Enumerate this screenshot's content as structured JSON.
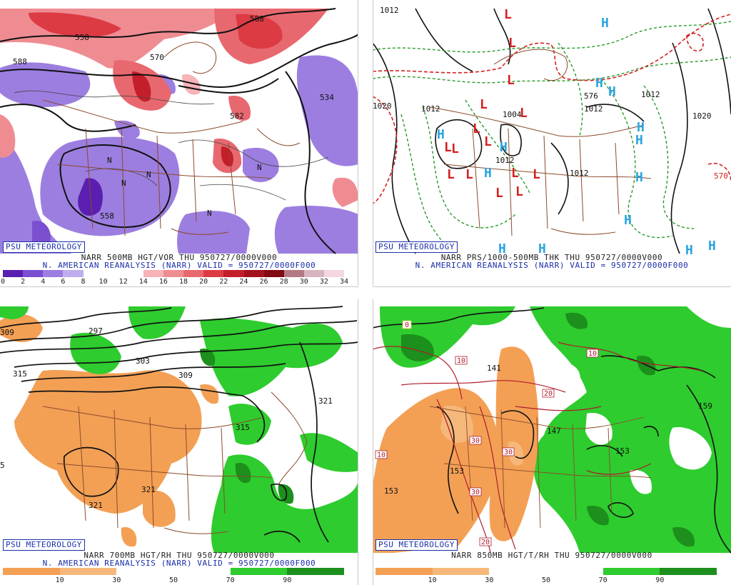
{
  "panels": [
    {
      "tag": "PSU METEOROLOGY",
      "line1": "NARR 500MB HGT/VOR THU 950727/0000V000",
      "line2": "N. AMERICAN REANALYSIS (NARR) VALID = 950727/0000F000",
      "legend_colors": [
        "#5a1fb0",
        "#7b4fd0",
        "#9c7ee0",
        "#bfaeee",
        "#ffffff",
        "#ffffff",
        "#ffffff",
        "#f6b3b8",
        "#ef8c92",
        "#e8686f",
        "#dc3b44",
        "#c31f2a",
        "#a3121c",
        "#820a12",
        "#b37a84",
        "#d7b5bf",
        "#f4d7df"
      ],
      "legend_ticks": [
        "0",
        "2",
        "4",
        "6",
        "8",
        "10",
        "12",
        "14",
        "16",
        "18",
        "20",
        "22",
        "24",
        "26",
        "28",
        "30",
        "32",
        "34"
      ],
      "labels": [
        "558",
        "588",
        "570",
        "534",
        "588",
        "582",
        "558",
        "N",
        "N",
        "N",
        "N",
        "N"
      ]
    },
    {
      "tag": "PSU METEOROLOGY",
      "line1": "NARR PRS/1000-500MB THK THU 950727/0000V000",
      "line2": "N. AMERICAN REANALYSIS (NARR) VALID = 950727/0000F000",
      "labels": [
        "1012",
        "1020",
        "1012",
        "1004",
        "1012",
        "1012",
        "1012",
        "1020",
        "570",
        "576",
        "1012"
      ],
      "highs": [
        "H",
        "H",
        "H",
        "H",
        "H",
        "H",
        "H",
        "H",
        "H",
        "H",
        "H",
        "H",
        "H",
        "H"
      ],
      "lows": [
        "L",
        "L",
        "L",
        "L",
        "L",
        "L",
        "L",
        "L",
        "L",
        "L",
        "L",
        "L",
        "L",
        "L",
        "L"
      ]
    },
    {
      "tag": "PSU METEOROLOGY",
      "line1": "NARR 700MB HGT/RH THU 950727/0000V000",
      "line2": "N. AMERICAN REANALYSIS (NARR) VALID = 950727/0000F000",
      "legend_colors": [
        "#f3a055",
        "#f6b87a",
        "#ffffff",
        "#ffffff",
        "#2ecc2e",
        "#1c8f1c"
      ],
      "legend_ticks": [
        "10",
        "30",
        "50",
        "70",
        "90"
      ],
      "labels": [
        "309",
        "297",
        "303",
        "315",
        "309",
        "321",
        "315",
        "321",
        "321",
        "5"
      ]
    },
    {
      "tag": "PSU METEOROLOGY",
      "line1": "NARR 850MB HGT/T/RH THU 950727/0000V000",
      "line2": "N. AMERICAN REANALYSIS (NARR) VALID = 950727/0000F000",
      "legend_colors": [
        "#f3a055",
        "#f6b87a",
        "#ffffff",
        "#ffffff",
        "#2ecc2e",
        "#1c8f1c"
      ],
      "legend_ticks": [
        "10",
        "30",
        "50",
        "70",
        "90"
      ],
      "labels": [
        "0",
        "10",
        "10",
        "20",
        "30",
        "30",
        "30",
        "20",
        "10",
        "153",
        "147",
        "153",
        "159",
        "153",
        "141"
      ]
    }
  ]
}
